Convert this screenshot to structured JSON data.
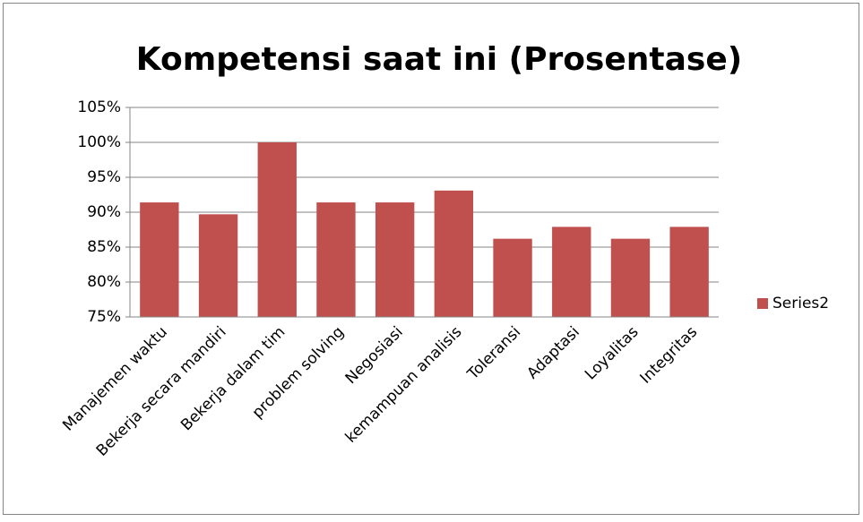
{
  "chart_data": {
    "type": "bar",
    "title": "Kompetensi saat ini (Prosentase)",
    "categories": [
      "Manajemen waktu",
      "Bekerja secara mandiri",
      "Bekerja dalam tim",
      "problem solving",
      "Negosiasi",
      "kemampuan analisis",
      "Toleransi",
      "Adaptasi",
      "Loyalitas",
      "Integritas"
    ],
    "series": [
      {
        "name": "Series2",
        "color": "#c0504d",
        "values": [
          91.4,
          89.7,
          100,
          91.4,
          91.4,
          93.1,
          86.2,
          87.9,
          86.2,
          87.9
        ]
      }
    ],
    "ylim": [
      75,
      105
    ],
    "yticks": [
      {
        "value": 75,
        "label": "75%"
      },
      {
        "value": 80,
        "label": "80%"
      },
      {
        "value": 85,
        "label": "85%"
      },
      {
        "value": 90,
        "label": "90%"
      },
      {
        "value": 95,
        "label": "95%"
      },
      {
        "value": 100,
        "label": "100%"
      },
      {
        "value": 105,
        "label": "105%"
      }
    ],
    "grid": true,
    "legend": "right"
  }
}
